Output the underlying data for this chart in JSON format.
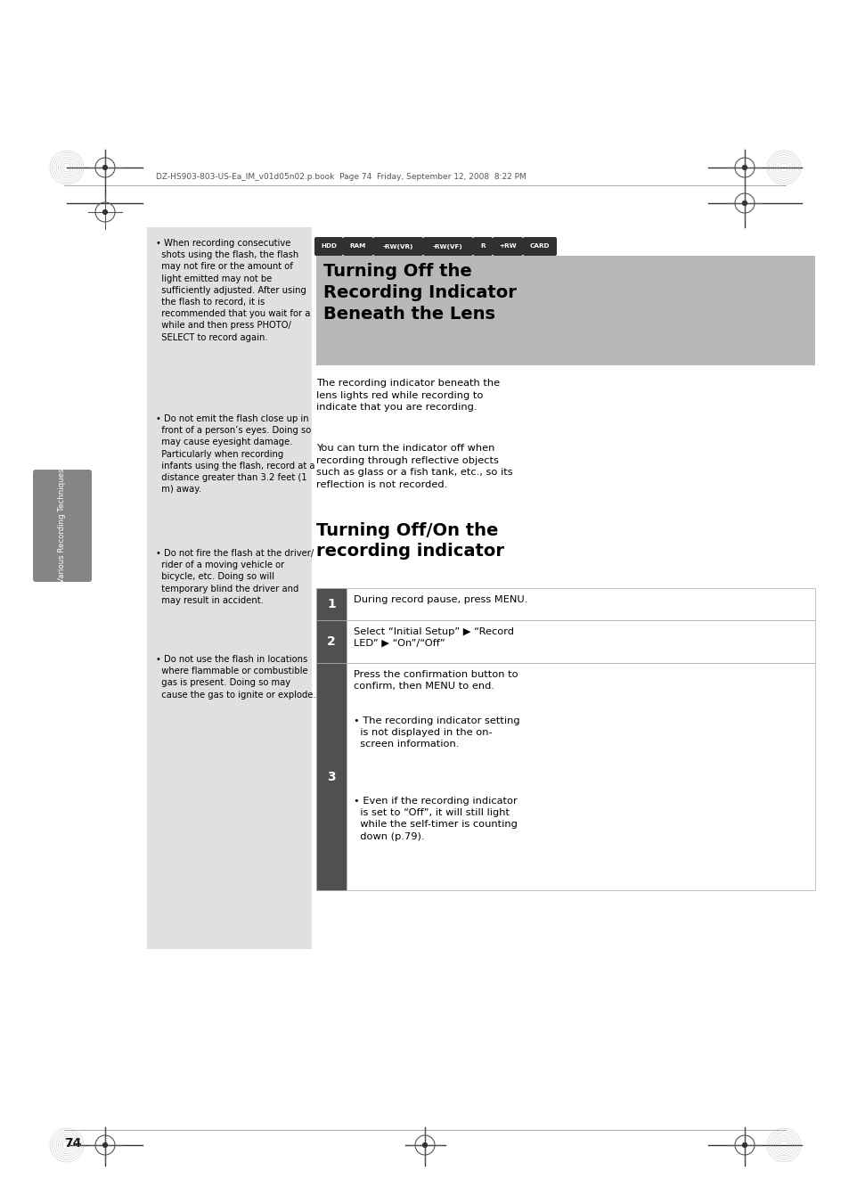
{
  "page_bg": "#ffffff",
  "page_width": 9.54,
  "page_height": 13.5,
  "dpi": 100,
  "header_text": "DZ-HS903-803-US-Ea_IM_v01d05n02.p.book  Page 74  Friday, September 12, 2008  8:22 PM",
  "page_number": "74",
  "sidebar_text": "Various Recording Techniques",
  "media_icons": [
    "HDD",
    "RAM",
    "-RW(VR)",
    "-RW(VF)",
    "R",
    "+RW",
    "CARD"
  ],
  "main_title": "Turning Off the\nRecording Indicator\nBeneath the Lens",
  "body1": "The recording indicator beneath the\nlens lights red while recording to\nindicate that you are recording.",
  "body2": "You can turn the indicator off when\nrecording through reflective objects\nsuch as glass or a fish tank, etc., so its\nreflection is not recorded.",
  "section2_title": "Turning Off/On the\nrecording indicator",
  "step1_text": "During record pause, press MENU.",
  "step2_text": "Select “Initial Setup” ▶ “Record\nLED” ▶ “On”/“Off”",
  "step3_intro": "Press the confirmation button to\nconfirm, then MENU to end.",
  "step3_b1": "• The recording indicator setting\n  is not displayed in the on-\n  screen information.",
  "step3_b2": "• Even if the recording indicator\n  is set to “Off”, it will still light\n  while the self-timer is counting\n  down (p.79).",
  "text_color": "#000000",
  "section_title_bg": "#b8b8b8",
  "step_num_bg": "#505050",
  "icon_bg": "#303030",
  "left_col_bg": "#e0e0e0"
}
